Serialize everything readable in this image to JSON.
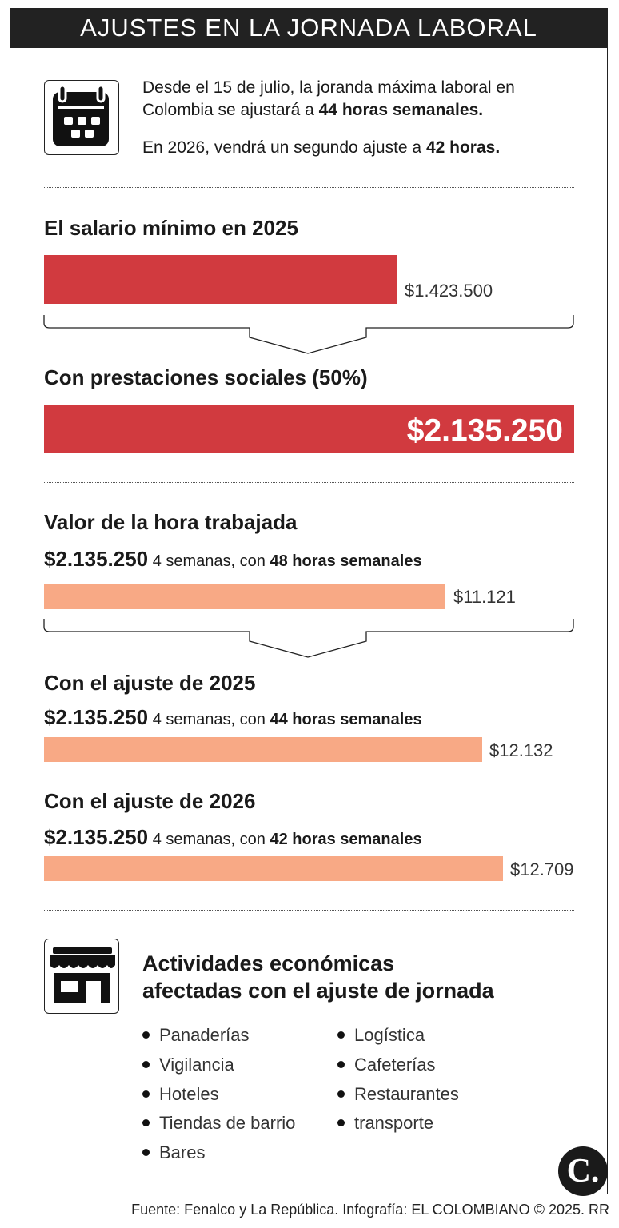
{
  "title": "AJUSTES EN LA JORNADA LABORAL",
  "intro": {
    "line1_pre": "Desde el 15 de julio, la joranda máxima laboral en Colombia se ajustará a ",
    "line1_bold": "44 horas semanales.",
    "line2_pre": "En 2026, vendrá un segundo ajuste a ",
    "line2_bold": "42 horas."
  },
  "salary": {
    "heading": "El salario mínimo en 2025",
    "value_label": "$1.423.500",
    "benefits_heading": "Con prestaciones sociales (50%)",
    "benefits_label": "$2.135.250"
  },
  "hourly": {
    "heading": "Valor de la hora trabajada",
    "base_amount": "$2.135.250",
    "weeks_text": " 4 semanas, con ",
    "rows": [
      {
        "hours_text": "48 horas semanales",
        "label": "$11.121"
      },
      {
        "heading": "Con el ajuste de 2025",
        "hours_text": "44 horas semanales",
        "label": "$12.132"
      },
      {
        "heading": "Con el ajuste de 2026",
        "hours_text": "42 horas semanales",
        "label": "$12.709"
      }
    ]
  },
  "chart_data": [
    {
      "type": "bar",
      "categories": [
        "El salario mínimo en 2025",
        "Con prestaciones sociales (50%)"
      ],
      "values": [
        1423500,
        2135250
      ]
    },
    {
      "type": "bar",
      "categories": [
        "48 horas semanales",
        "44 horas semanales",
        "42 horas semanales"
      ],
      "values": [
        11121,
        12132,
        12709
      ]
    }
  ],
  "activities": {
    "title_line1": "Actividades económicas",
    "title_line2": "afectadas con el ajuste de jornada",
    "col1": [
      "Panaderías",
      "Vigilancia",
      "Hoteles",
      "Tiendas de barrio",
      "Bares"
    ],
    "col2": [
      "Logística",
      "Cafeterías",
      "Restaurantes",
      "transporte"
    ]
  },
  "icons": {
    "calendar": "calendar-icon",
    "store": "store-icon",
    "logo": "el-colombiano-logo"
  },
  "colors": {
    "red_bar": "#d13a3f",
    "peach_bar": "#f8a985",
    "title_bg": "#222222"
  },
  "logo_text": "C.",
  "source": "Fuente: Fenalco y La República. Infografía: EL COLOMBIANO © 2025. RR"
}
